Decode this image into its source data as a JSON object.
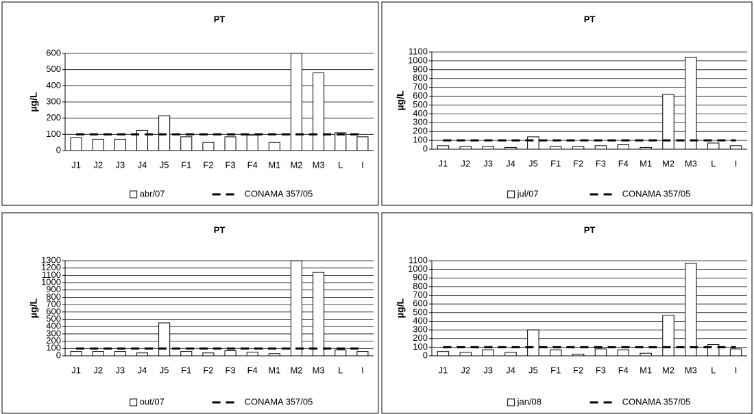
{
  "chart_data": [
    {
      "type": "bar",
      "title": "PT",
      "ylabel": "µg/L",
      "categories": [
        "J1",
        "J2",
        "J3",
        "J4",
        "J5",
        "F1",
        "F2",
        "F3",
        "F4",
        "M1",
        "M2",
        "M3",
        "L",
        "I"
      ],
      "series": [
        {
          "name": "abr/07",
          "color": "#ffffff",
          "values": [
            80,
            70,
            70,
            125,
            215,
            85,
            50,
            85,
            95,
            50,
            600,
            480,
            110,
            85
          ]
        },
        {
          "name": "CONAMA 357/05",
          "type": "line",
          "color": "#000000",
          "values": [
            100,
            100,
            100,
            100,
            100,
            100,
            100,
            100,
            100,
            100,
            100,
            100,
            100,
            100
          ]
        }
      ],
      "ylim": [
        0,
        600
      ],
      "yticks": [
        0,
        100,
        200,
        300,
        400,
        500,
        600
      ],
      "grid": true
    },
    {
      "type": "bar",
      "title": "PT",
      "ylabel": "µg/L",
      "categories": [
        "J1",
        "J2",
        "J3",
        "J4",
        "J5",
        "F1",
        "F2",
        "F3",
        "F4",
        "M1",
        "M2",
        "M3",
        "L",
        "I"
      ],
      "series": [
        {
          "name": "jul/07",
          "color": "#ffffff",
          "values": [
            40,
            30,
            30,
            20,
            140,
            30,
            30,
            40,
            50,
            20,
            620,
            1040,
            70,
            40
          ]
        },
        {
          "name": "CONAMA 357/05",
          "type": "line",
          "color": "#000000",
          "values": [
            100,
            100,
            100,
            100,
            100,
            100,
            100,
            100,
            100,
            100,
            100,
            100,
            100,
            100
          ]
        }
      ],
      "ylim": [
        0,
        1100
      ],
      "yticks": [
        0,
        100,
        200,
        300,
        400,
        500,
        600,
        700,
        800,
        900,
        1000,
        1100
      ],
      "grid": true
    },
    {
      "type": "bar",
      "title": "PT",
      "ylabel": "µg/L",
      "categories": [
        "J1",
        "J2",
        "J3",
        "J4",
        "J5",
        "F1",
        "F2",
        "F3",
        "F4",
        "M1",
        "M2",
        "M3",
        "L",
        "I"
      ],
      "series": [
        {
          "name": "out/07",
          "color": "#ffffff",
          "values": [
            60,
            60,
            60,
            40,
            450,
            60,
            40,
            70,
            50,
            30,
            1300,
            1140,
            80,
            60
          ]
        },
        {
          "name": "CONAMA 357/05",
          "type": "line",
          "color": "#000000",
          "values": [
            100,
            100,
            100,
            100,
            100,
            100,
            100,
            100,
            100,
            100,
            100,
            100,
            100,
            100
          ]
        }
      ],
      "ylim": [
        0,
        1300
      ],
      "yticks": [
        0,
        100,
        200,
        300,
        400,
        500,
        600,
        700,
        800,
        900,
        1000,
        1100,
        1200,
        1300
      ],
      "grid": true
    },
    {
      "type": "bar",
      "title": "PT",
      "ylabel": "µg/L",
      "categories": [
        "J1",
        "J2",
        "J3",
        "J4",
        "J5",
        "F1",
        "F2",
        "F3",
        "F4",
        "M1",
        "M2",
        "M3",
        "L",
        "I"
      ],
      "series": [
        {
          "name": "jan/08",
          "color": "#ffffff",
          "values": [
            50,
            40,
            70,
            40,
            300,
            70,
            20,
            80,
            70,
            30,
            470,
            1070,
            130,
            80
          ]
        },
        {
          "name": "CONAMA 357/05",
          "type": "line",
          "color": "#000000",
          "values": [
            100,
            100,
            100,
            100,
            100,
            100,
            100,
            100,
            100,
            100,
            100,
            100,
            100,
            100
          ]
        }
      ],
      "ylim": [
        0,
        1100
      ],
      "yticks": [
        0,
        100,
        200,
        300,
        400,
        500,
        600,
        700,
        800,
        900,
        1000,
        1100
      ],
      "grid": true
    }
  ]
}
